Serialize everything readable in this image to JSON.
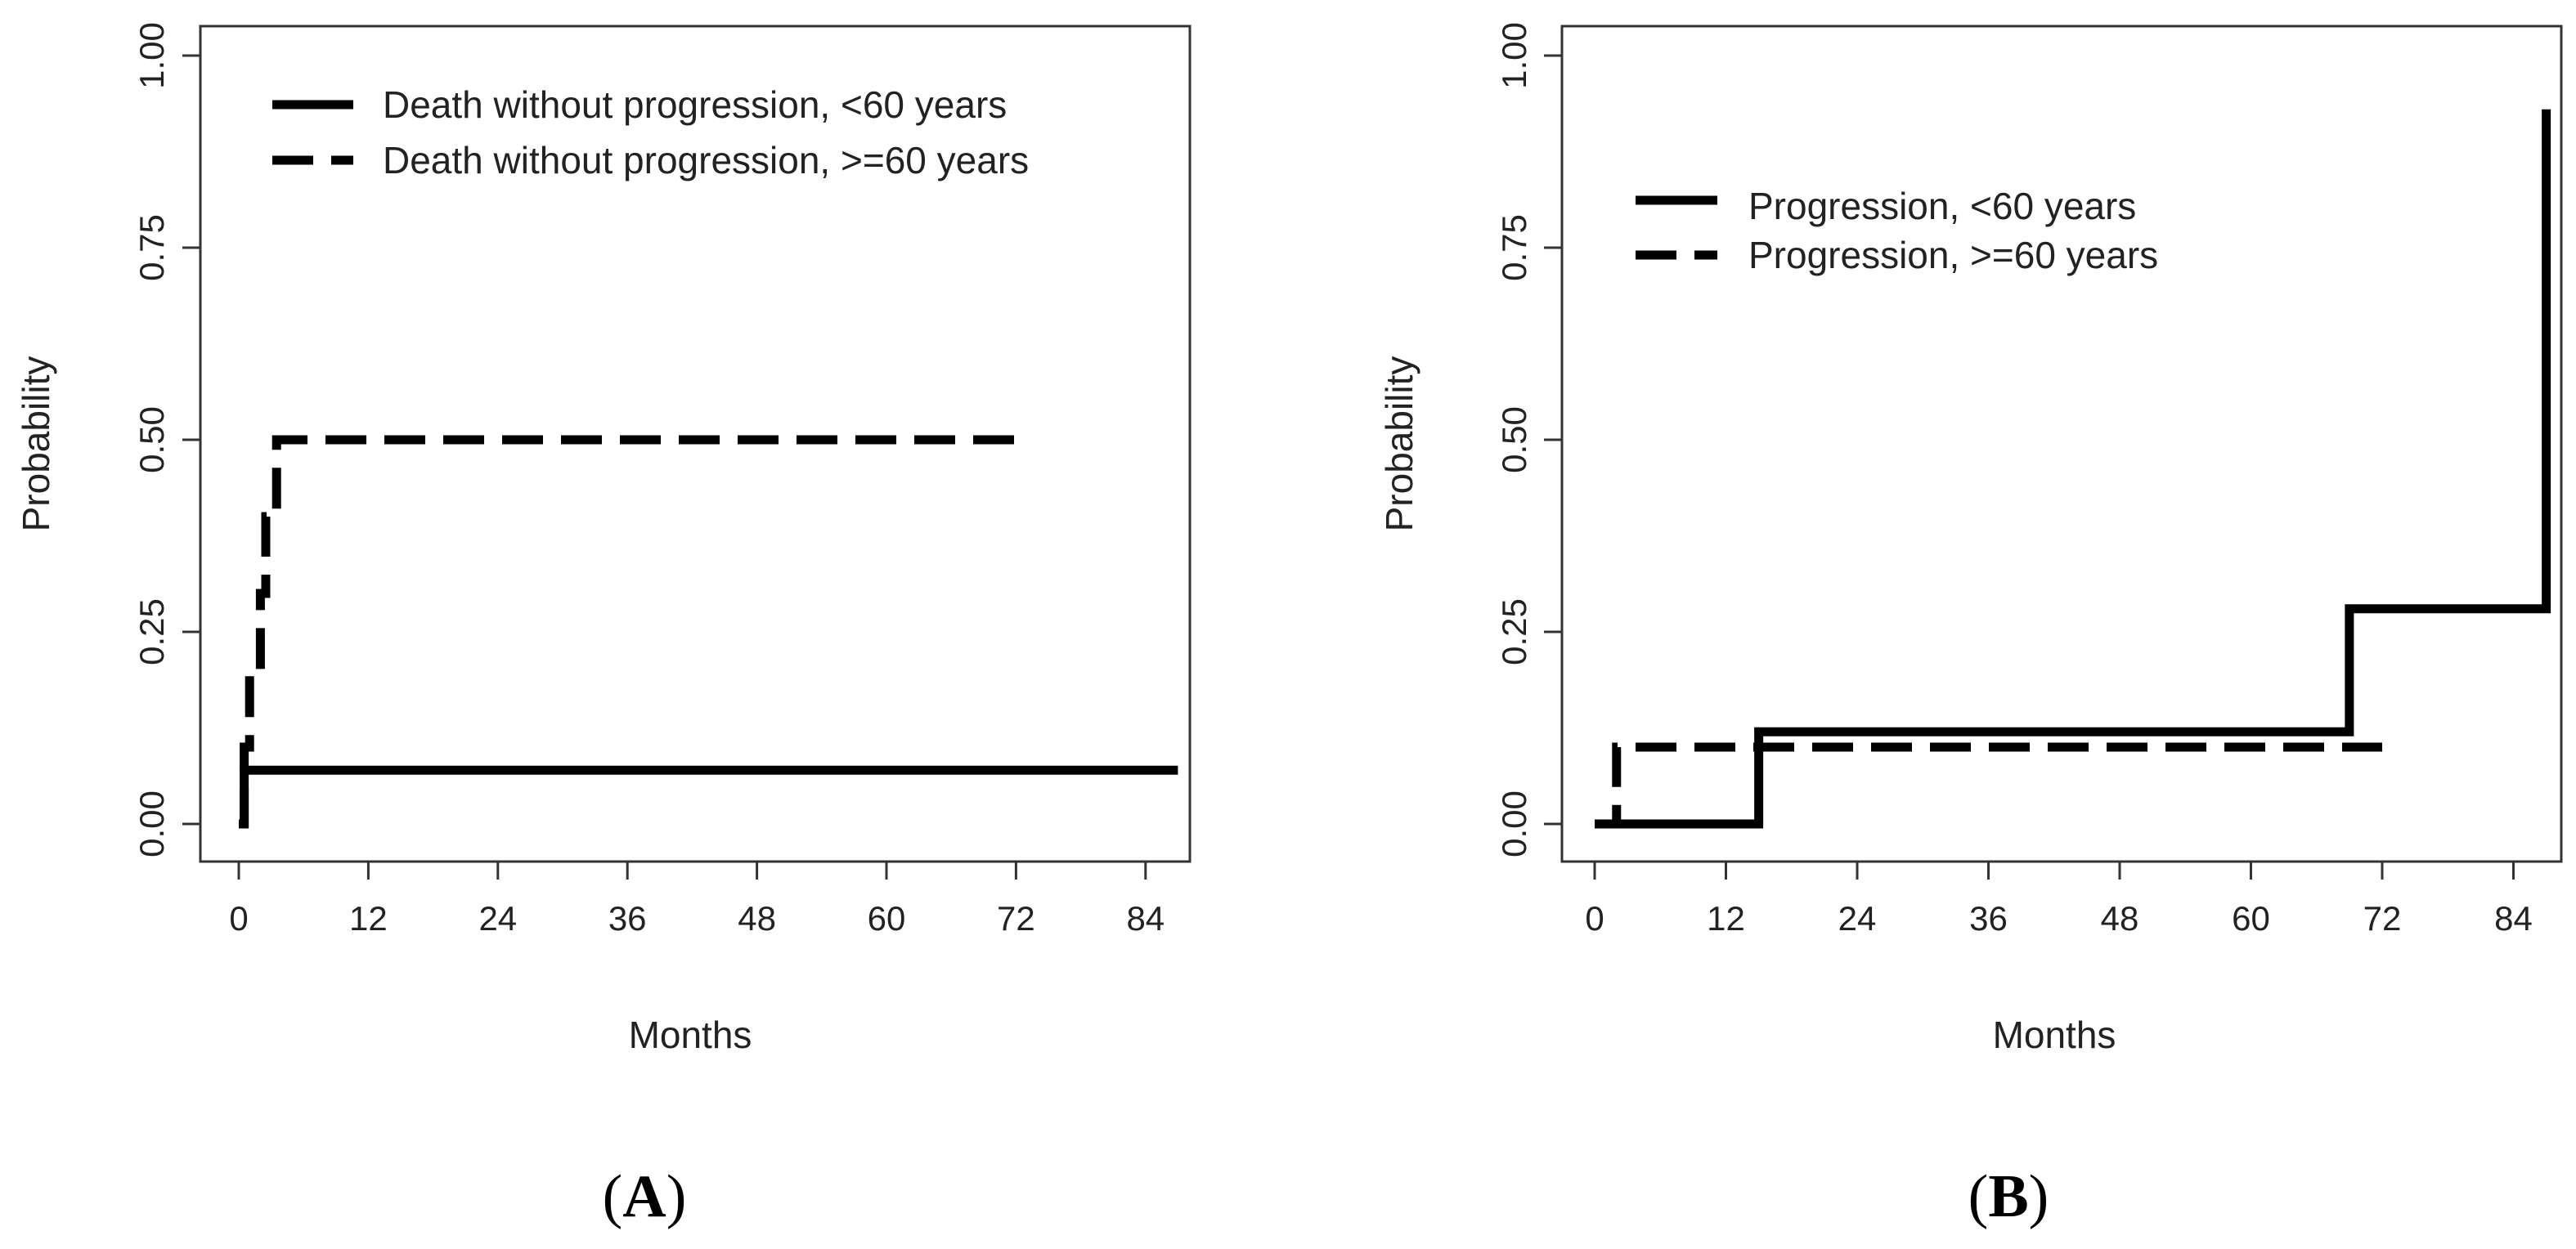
{
  "chart_data": [
    {
      "type": "line",
      "panel_label": "A",
      "xlabel": "Months",
      "ylabel": "Probability",
      "xlim": [
        0,
        87
      ],
      "ylim": [
        0,
        1
      ],
      "x_ticks": [
        0,
        12,
        24,
        36,
        48,
        60,
        72,
        84
      ],
      "y_ticks": [
        0,
        0.25,
        0.5,
        0.75,
        1
      ],
      "x_tick_labels": [
        "0",
        "12",
        "24",
        "36",
        "48",
        "60",
        "72",
        "84"
      ],
      "y_tick_labels": [
        "0.00",
        "0.25",
        "0.50",
        "0.75",
        "1.00"
      ],
      "legend_position": "top-left",
      "series": [
        {
          "name": "Death without progression, <60 years",
          "style": "solid",
          "step": true,
          "points": [
            [
              0,
              0
            ],
            [
              0.5,
              0.07
            ],
            [
              87,
              0.07
            ]
          ]
        },
        {
          "name": "Death without progression, >=60 years",
          "style": "dashed",
          "step": true,
          "points": [
            [
              0,
              0
            ],
            [
              0.5,
              0.1
            ],
            [
              1,
              0.2
            ],
            [
              2,
              0.3
            ],
            [
              2.5,
              0.4
            ],
            [
              3.5,
              0.5
            ],
            [
              73,
              0.5
            ]
          ]
        }
      ]
    },
    {
      "type": "line",
      "panel_label": "B",
      "xlabel": "Months",
      "ylabel": "Probability",
      "xlim": [
        0,
        87
      ],
      "ylim": [
        0,
        1
      ],
      "x_ticks": [
        0,
        12,
        24,
        36,
        48,
        60,
        72,
        84
      ],
      "y_ticks": [
        0,
        0.25,
        0.5,
        0.75,
        1
      ],
      "x_tick_labels": [
        "0",
        "12",
        "24",
        "36",
        "48",
        "60",
        "72",
        "84"
      ],
      "y_tick_labels": [
        "0.00",
        "0.25",
        "0.50",
        "0.75",
        "1.00"
      ],
      "legend_position": "upper-left",
      "series": [
        {
          "name": "Progression, <60 years",
          "style": "solid",
          "step": true,
          "points": [
            [
              0,
              0
            ],
            [
              15,
              0.12
            ],
            [
              69,
              0.28
            ],
            [
              87,
              0.93
            ]
          ]
        },
        {
          "name": "Progression, >=60 years",
          "style": "dashed",
          "step": true,
          "points": [
            [
              0,
              0
            ],
            [
              2,
              0.1
            ],
            [
              72,
              0.1
            ]
          ]
        }
      ]
    }
  ]
}
